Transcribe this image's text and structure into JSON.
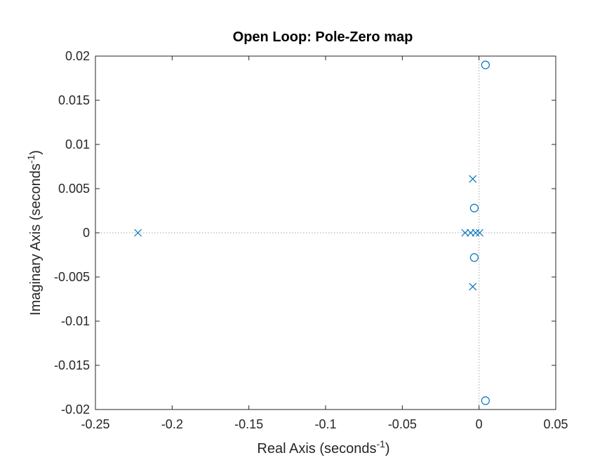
{
  "chart_data": {
    "type": "scatter",
    "title": "Open Loop: Pole-Zero map",
    "xlabel": {
      "main": "Real Axis (seconds",
      "superscript": "-1",
      "close": ")"
    },
    "ylabel": {
      "main": "Imaginary Axis (seconds",
      "superscript": "-1",
      "close": ")"
    },
    "xlim": [
      -0.25,
      0.05
    ],
    "ylim": [
      -0.02,
      0.02
    ],
    "xticks": [
      -0.25,
      -0.2,
      -0.15,
      -0.1,
      -0.05,
      0,
      0.05
    ],
    "xtick_labels": [
      "-0.25",
      "-0.2",
      "-0.15",
      "-0.1",
      "-0.05",
      "0",
      "0.05"
    ],
    "yticks": [
      -0.02,
      -0.015,
      -0.01,
      -0.005,
      0,
      0.005,
      0.01,
      0.015,
      0.02
    ],
    "ytick_labels": [
      "-0.02",
      "-0.015",
      "-0.01",
      "-0.005",
      "0",
      "0.005",
      "0.01",
      "0.015",
      "0.02"
    ],
    "grid": false,
    "reference_lines": [
      "x = 0 dotted",
      "y = 0 dotted"
    ],
    "series": [
      {
        "marker": "x",
        "points": [
          {
            "x": -0.2223,
            "y": 0
          },
          {
            "x": -0.0091,
            "y": 0
          },
          {
            "x": -0.0055,
            "y": 0
          },
          {
            "x": -0.0022,
            "y": 0
          },
          {
            "x": 0.0004,
            "y": 0
          },
          {
            "x": -0.0041,
            "y": 0.0061
          },
          {
            "x": -0.0041,
            "y": -0.0061
          }
        ]
      },
      {
        "marker": "o",
        "points": [
          {
            "x": 0.0042,
            "y": 0.019
          },
          {
            "x": -0.0031,
            "y": 0.0028
          },
          {
            "x": -0.0031,
            "y": -0.0028
          },
          {
            "x": 0.0042,
            "y": -0.019
          }
        ]
      }
    ]
  },
  "colors": {
    "marker": "#0072BD",
    "axes": "#262626",
    "reference_line": "#a6a6a6",
    "background": "#ffffff"
  }
}
